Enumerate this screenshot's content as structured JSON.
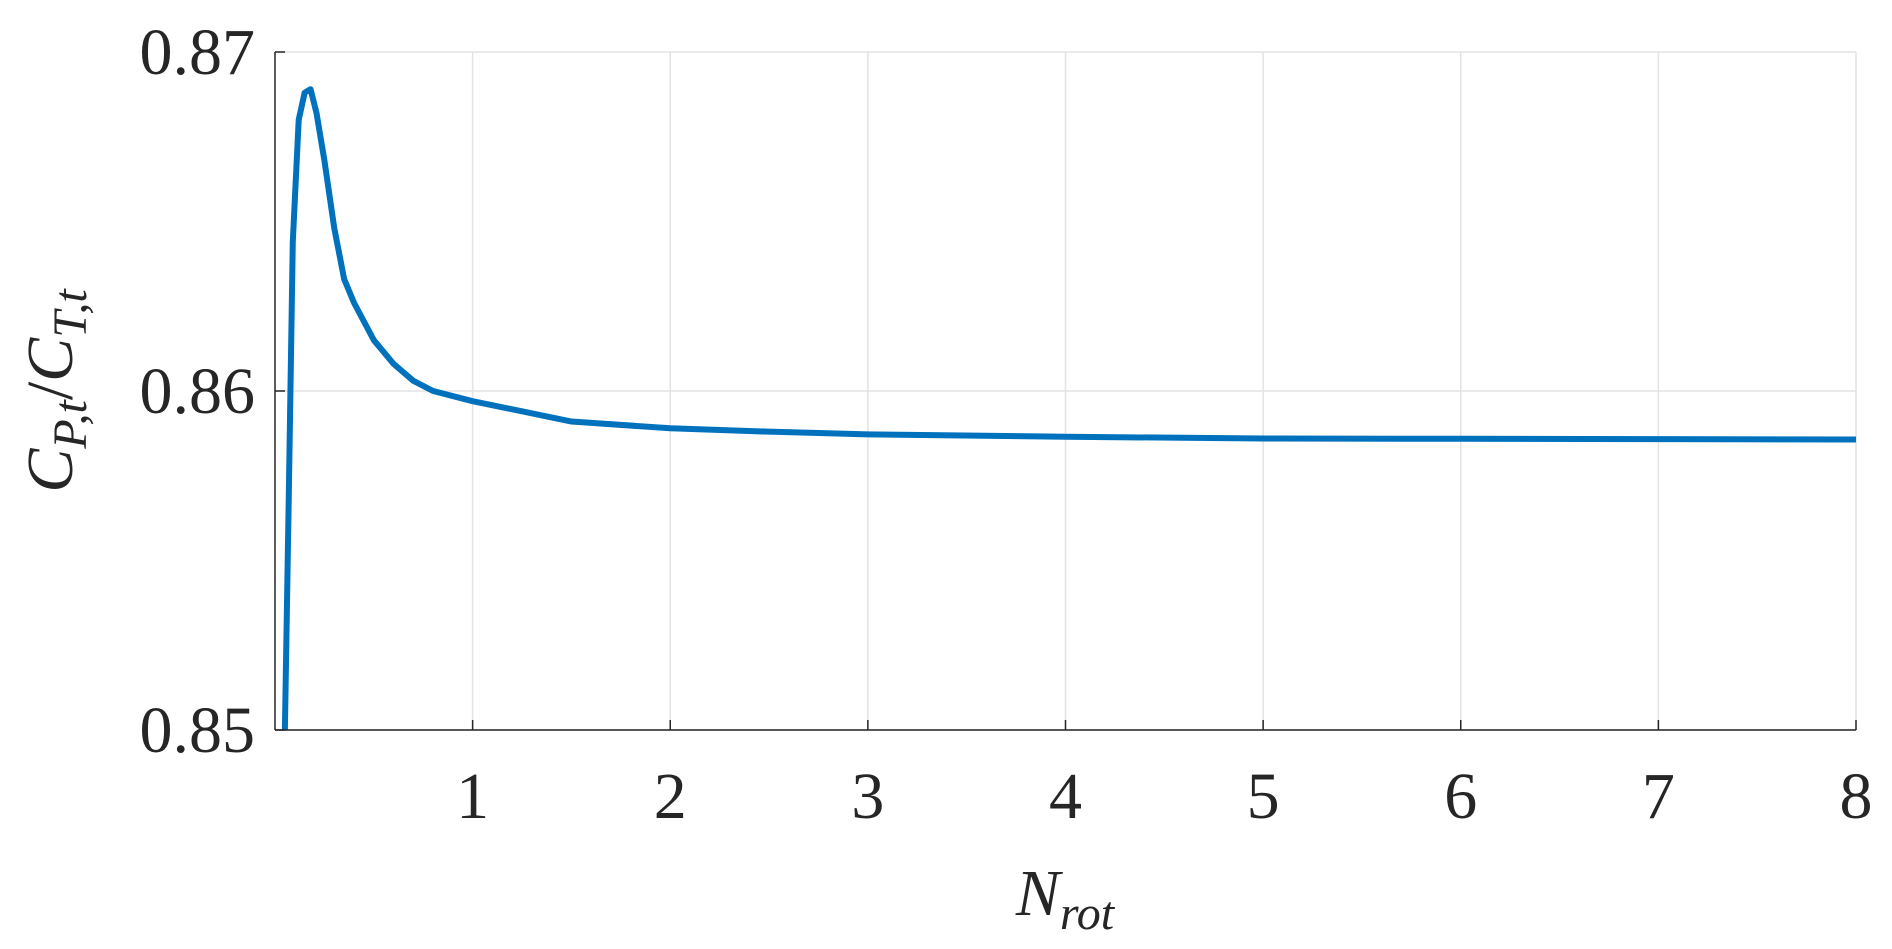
{
  "chart_data": {
    "type": "line",
    "xlabel": [
      "N",
      "rot"
    ],
    "ylabel": [
      "C",
      "P,t",
      "/",
      "C",
      "T,t"
    ],
    "x": [
      0.05,
      0.07,
      0.09,
      0.12,
      0.15,
      0.18,
      0.21,
      0.25,
      0.3,
      0.35,
      0.4,
      0.5,
      0.6,
      0.7,
      0.8,
      1,
      1.25,
      1.5,
      2,
      2.5,
      3,
      4,
      5,
      6,
      7,
      8
    ],
    "values": [
      0.85,
      0.857,
      0.8644,
      0.868,
      0.8688,
      0.8689,
      0.8682,
      0.8668,
      0.8648,
      0.8633,
      0.8626,
      0.8615,
      0.8608,
      0.8603,
      0.86,
      0.8597,
      0.8594,
      0.8591,
      0.8589,
      0.8588,
      0.85872,
      0.85865,
      0.8586,
      0.85859,
      0.85858,
      0.85857
    ],
    "color": "#0072bd",
    "xlim": [
      0,
      8
    ],
    "xticks": [
      1,
      2,
      3,
      4,
      5,
      6,
      7,
      8
    ],
    "ylim": [
      0.85,
      0.87
    ],
    "yticks": [
      0.85,
      0.86,
      0.87
    ],
    "grid": true
  }
}
